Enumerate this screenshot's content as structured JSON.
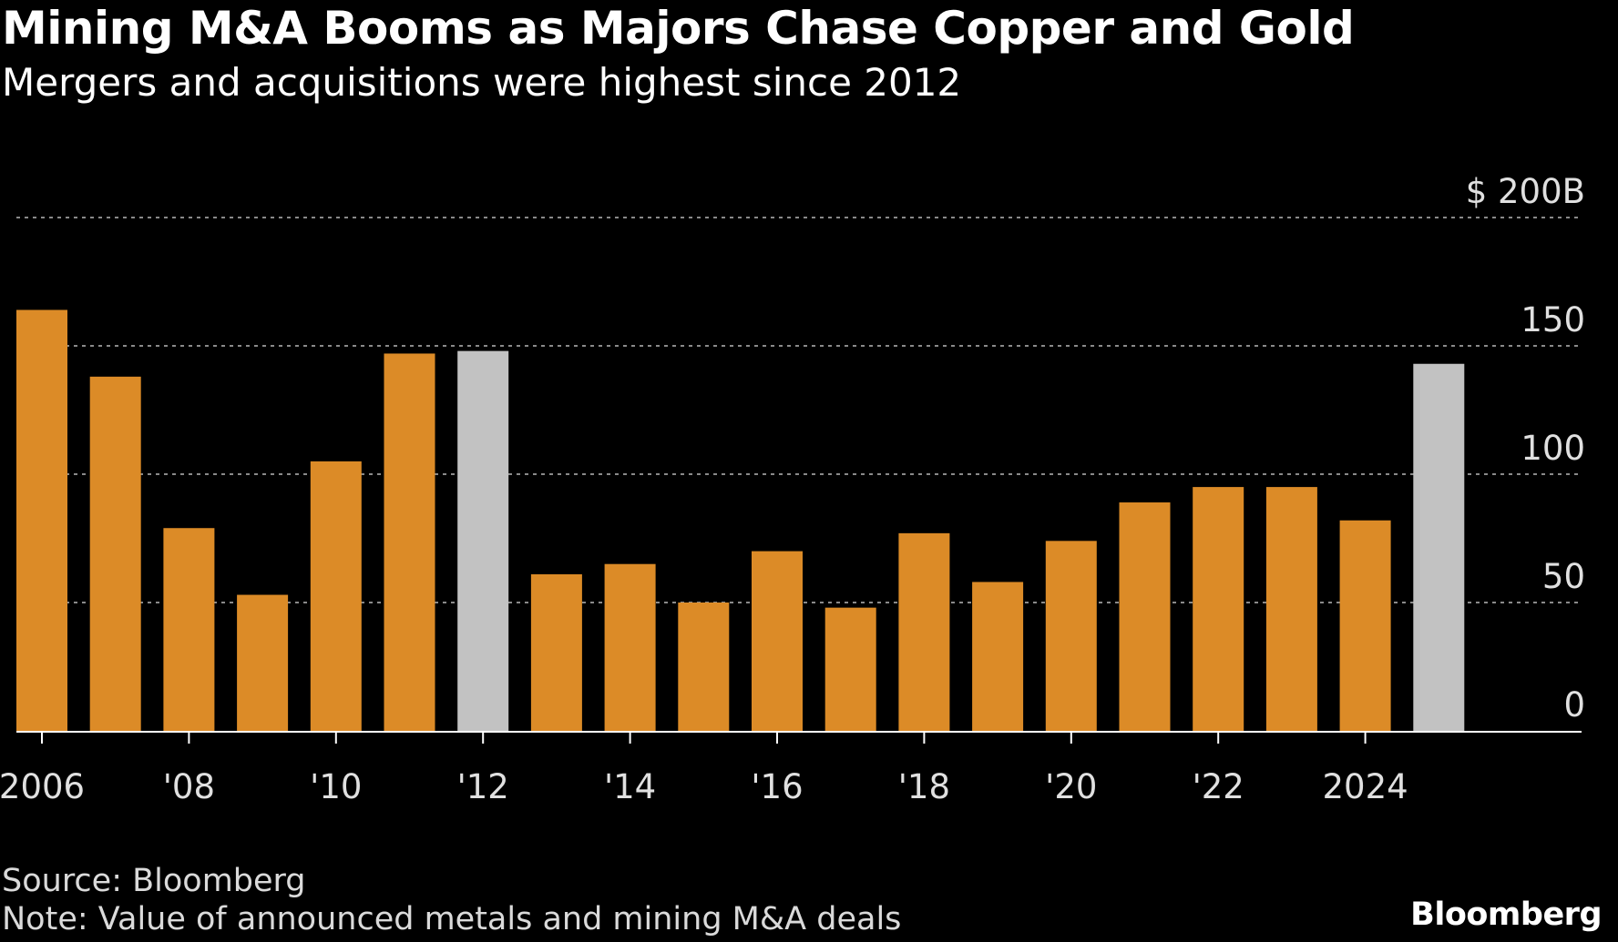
{
  "header": {
    "title": "Mining M&A Booms as Majors Chase Copper and Gold",
    "subtitle": "Mergers and acquisitions were highest since 2012"
  },
  "footer": {
    "source": "Source: Bloomberg",
    "note": "Note: Value of announced metals and mining M&A deals",
    "logo": "Bloomberg"
  },
  "colors": {
    "background": "#000000",
    "bar_default": "#dc8b27",
    "bar_highlight": "#c2c2c2",
    "grid": "#8a8a8a",
    "axis": "#ffffff",
    "tick_label": "#e0e0e0"
  },
  "chart_data": {
    "type": "bar",
    "x": [
      2006,
      2007,
      2008,
      2009,
      2010,
      2011,
      2012,
      2013,
      2014,
      2015,
      2016,
      2017,
      2018,
      2019,
      2020,
      2021,
      2022,
      2023,
      2024,
      2025
    ],
    "values": [
      164,
      138,
      79,
      53,
      105,
      147,
      148,
      61,
      65,
      50,
      70,
      48,
      77,
      58,
      74,
      89,
      95,
      95,
      82,
      143
    ],
    "highlighted": [
      2012,
      2025
    ],
    "x_tick_labels": [
      {
        "x": 2006,
        "label": "2006"
      },
      {
        "x": 2008,
        "label": "'08"
      },
      {
        "x": 2010,
        "label": "'10"
      },
      {
        "x": 2012,
        "label": "'12"
      },
      {
        "x": 2014,
        "label": "'14"
      },
      {
        "x": 2016,
        "label": "'16"
      },
      {
        "x": 2018,
        "label": "'18"
      },
      {
        "x": 2020,
        "label": "'20"
      },
      {
        "x": 2022,
        "label": "'22"
      },
      {
        "x": 2024,
        "label": "2024"
      }
    ],
    "y_ticks": [
      {
        "value": 0,
        "label": "0"
      },
      {
        "value": 50,
        "label": "50"
      },
      {
        "value": 100,
        "label": "100"
      },
      {
        "value": 150,
        "label": "150"
      },
      {
        "value": 200,
        "label": "$ 200B"
      }
    ],
    "ylim": [
      0,
      200
    ],
    "grid": true,
    "y_axis_position": "right"
  }
}
